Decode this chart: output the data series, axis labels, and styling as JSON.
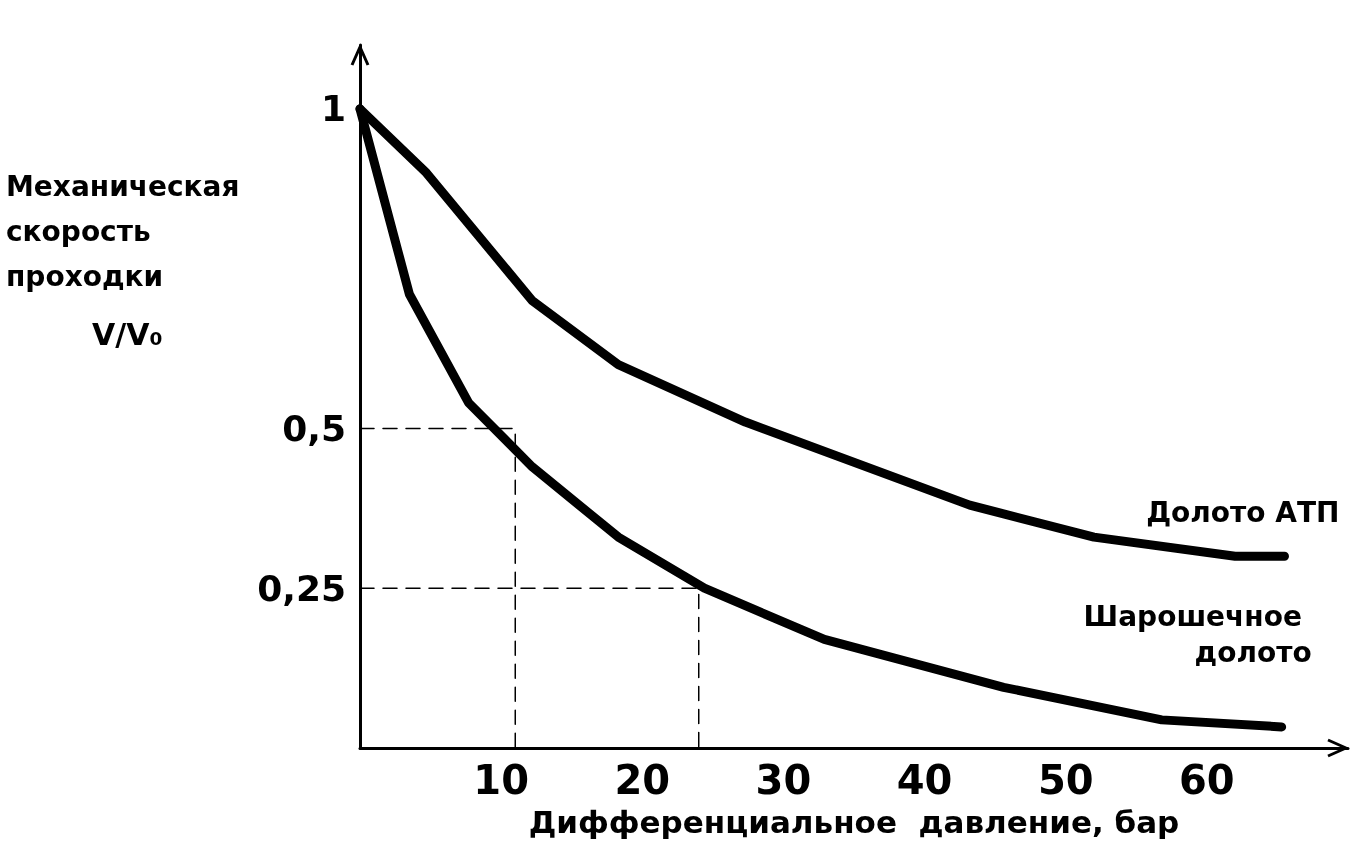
{
  "chart_data": {
    "type": "line",
    "xlabel": "Дифференциальное  давление, бар",
    "ylabel": "Механическая скорость проходки V/V₀",
    "xlim": [
      0,
      70
    ],
    "xticks": [
      10,
      20,
      30,
      40,
      50,
      60
    ],
    "ylim": [
      0,
      1.1
    ],
    "yticks": [
      {
        "value": 0.25,
        "label": "0,25"
      },
      {
        "value": 0.5,
        "label": "0,5"
      },
      {
        "value": 1,
        "label": "1"
      }
    ],
    "grid": false,
    "legend": false,
    "marker": "none",
    "series": [
      {
        "name": "Долото АТП",
        "color": "#000000",
        "line_style": "solid",
        "x": [
          0,
          4.7,
          12.2,
          18.3,
          27.3,
          43.2,
          52,
          62,
          65.5
        ],
        "values": [
          1,
          0.9,
          0.7,
          0.6,
          0.51,
          0.38,
          0.33,
          0.3,
          0.3
        ]
      },
      {
        "name": "Шарошечное долото",
        "color": "#000000",
        "line_style": "solid",
        "x": [
          0,
          3.5,
          7.7,
          12.2,
          18.3,
          24.4,
          32.9,
          45.6,
          56.8,
          65.3
        ],
        "values": [
          1,
          0.71,
          0.54,
          0.44,
          0.33,
          0.25,
          0.17,
          0.095,
          0.044,
          0.033
        ]
      },
      {
        "color": "#000000",
        "line_style": "dashed",
        "x": [
          0,
          11,
          11
        ],
        "values": [
          0.5,
          0.5,
          0
        ]
      },
      {
        "color": "#000000",
        "line_style": "dashed",
        "x": [
          0,
          24,
          24
        ],
        "values": [
          0.25,
          0.25,
          0
        ]
      }
    ]
  }
}
